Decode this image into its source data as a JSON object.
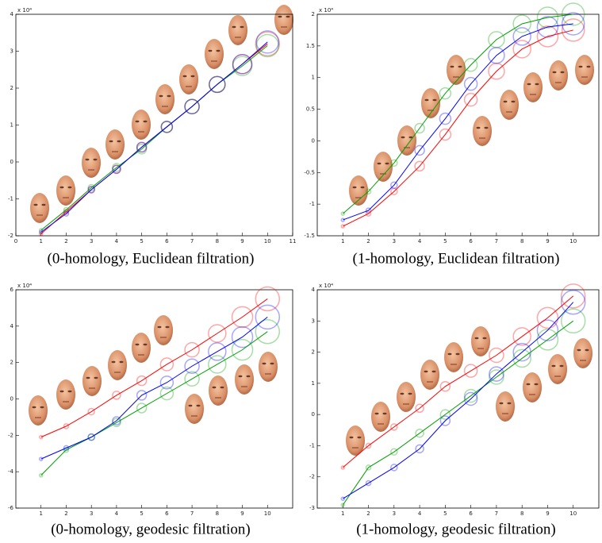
{
  "chart_data": [
    {
      "type": "line",
      "caption": "(0-homology, Euclidean filtration)",
      "y_multiplier": "x 10⁴",
      "x": [
        1,
        2,
        3,
        4,
        5,
        6,
        7,
        8,
        9,
        10
      ],
      "xlim": [
        0,
        11
      ],
      "xticks": [
        0,
        1,
        2,
        3,
        4,
        5,
        6,
        7,
        8,
        9,
        10,
        11
      ],
      "ylim": [
        -2,
        4
      ],
      "yticks": [
        -2,
        -1,
        0,
        1,
        2,
        3,
        4
      ],
      "series": [
        {
          "color": "#ff0000",
          "values": [
            -1.95,
            -1.35,
            -0.75,
            -0.2,
            0.4,
            0.95,
            1.5,
            2.1,
            2.65,
            3.2
          ],
          "sizes": [
            2,
            3,
            4,
            5,
            6,
            7,
            9,
            10,
            12,
            15
          ]
        },
        {
          "color": "#00a000",
          "values": [
            -1.85,
            -1.3,
            -0.7,
            -0.15,
            0.35,
            0.95,
            1.5,
            2.1,
            2.6,
            3.15
          ],
          "sizes": [
            2,
            3,
            4,
            5,
            6,
            7,
            9,
            10,
            12,
            14
          ]
        },
        {
          "color": "#0000ff",
          "values": [
            -1.9,
            -1.4,
            -0.75,
            -0.2,
            0.4,
            0.95,
            1.5,
            2.1,
            2.65,
            3.25
          ],
          "sizes": [
            2,
            3,
            4,
            5,
            6,
            7,
            9,
            10,
            12,
            14
          ]
        }
      ]
    },
    {
      "type": "line",
      "caption": "(1-homology, Euclidean filtration)",
      "y_multiplier": "x 10⁴",
      "x": [
        1,
        2,
        3,
        4,
        5,
        6,
        7,
        8,
        9,
        10
      ],
      "xlim": [
        0,
        11
      ],
      "xticks": [
        1,
        2,
        3,
        4,
        5,
        6,
        7,
        8,
        9,
        10
      ],
      "ylim": [
        -1.5,
        2
      ],
      "yticks": [
        -1.5,
        -1,
        -0.5,
        0,
        0.5,
        1,
        1.5,
        2
      ],
      "series": [
        {
          "color": "#ff0000",
          "values": [
            -1.35,
            -1.15,
            -0.8,
            -0.4,
            0.1,
            0.65,
            1.1,
            1.45,
            1.65,
            1.75
          ],
          "sizes": [
            2,
            3,
            4,
            6,
            7,
            8,
            10,
            11,
            13,
            14
          ]
        },
        {
          "color": "#00a000",
          "values": [
            -1.15,
            -0.8,
            -0.35,
            0.2,
            0.75,
            1.2,
            1.6,
            1.85,
            1.95,
            2.0
          ],
          "sizes": [
            2,
            3,
            4,
            6,
            7,
            8,
            10,
            11,
            13,
            14
          ]
        },
        {
          "color": "#0000ff",
          "values": [
            -1.25,
            -1.1,
            -0.7,
            -0.15,
            0.35,
            0.9,
            1.35,
            1.65,
            1.8,
            1.85
          ],
          "sizes": [
            2,
            3,
            4,
            6,
            7,
            8,
            10,
            11,
            13,
            14
          ]
        }
      ]
    },
    {
      "type": "line",
      "caption": "(0-homology, geodesic filtration)",
      "y_multiplier": "x 10⁴",
      "x": [
        1,
        2,
        3,
        4,
        5,
        6,
        7,
        8,
        9,
        10
      ],
      "xlim": [
        0,
        11
      ],
      "xticks": [
        1,
        2,
        3,
        4,
        5,
        6,
        7,
        8,
        9,
        10
      ],
      "ylim": [
        -6,
        6
      ],
      "yticks": [
        -6,
        -4,
        -2,
        0,
        2,
        4,
        6
      ],
      "series": [
        {
          "color": "#ff0000",
          "values": [
            -2.1,
            -1.5,
            -0.7,
            0.2,
            1.0,
            1.9,
            2.7,
            3.6,
            4.5,
            5.5
          ],
          "sizes": [
            2,
            3,
            4,
            5,
            6,
            8,
            9,
            11,
            13,
            15
          ]
        },
        {
          "color": "#00a000",
          "values": [
            -4.2,
            -2.8,
            -2.1,
            -1.3,
            -0.5,
            0.3,
            1.1,
            1.9,
            2.7,
            3.7
          ],
          "sizes": [
            2,
            3,
            4,
            5,
            6,
            8,
            9,
            11,
            13,
            15
          ]
        },
        {
          "color": "#0000ff",
          "values": [
            -3.3,
            -2.7,
            -2.1,
            -1.2,
            0.2,
            0.9,
            1.8,
            2.6,
            3.4,
            4.5
          ],
          "sizes": [
            2,
            3,
            4,
            5,
            6,
            8,
            9,
            11,
            13,
            15
          ]
        }
      ]
    },
    {
      "type": "line",
      "caption": "(1-homology, geodesic filtration)",
      "y_multiplier": "x 10⁴",
      "x": [
        1,
        2,
        3,
        4,
        5,
        6,
        7,
        8,
        9,
        10
      ],
      "xlim": [
        0,
        11
      ],
      "xticks": [
        1,
        2,
        3,
        4,
        5,
        6,
        7,
        8,
        9,
        10
      ],
      "ylim": [
        -3,
        4
      ],
      "yticks": [
        -3,
        -2,
        -1,
        0,
        1,
        2,
        3,
        4
      ],
      "series": [
        {
          "color": "#ff0000",
          "values": [
            -1.7,
            -1.0,
            -0.4,
            0.2,
            0.9,
            1.4,
            1.9,
            2.5,
            3.1,
            3.8
          ],
          "sizes": [
            2,
            3,
            4,
            5,
            6,
            8,
            9,
            11,
            13,
            15
          ]
        },
        {
          "color": "#00a000",
          "values": [
            -2.9,
            -1.7,
            -1.2,
            -0.6,
            0.0,
            0.6,
            1.2,
            1.8,
            2.4,
            3.0
          ],
          "sizes": [
            2,
            3,
            4,
            5,
            6,
            8,
            9,
            11,
            13,
            15
          ]
        },
        {
          "color": "#0000ff",
          "values": [
            -2.7,
            -2.2,
            -1.7,
            -1.1,
            -0.2,
            0.5,
            1.3,
            2.0,
            2.7,
            3.6
          ],
          "sizes": [
            2,
            3,
            4,
            5,
            6,
            8,
            9,
            11,
            13,
            15
          ]
        }
      ]
    }
  ]
}
